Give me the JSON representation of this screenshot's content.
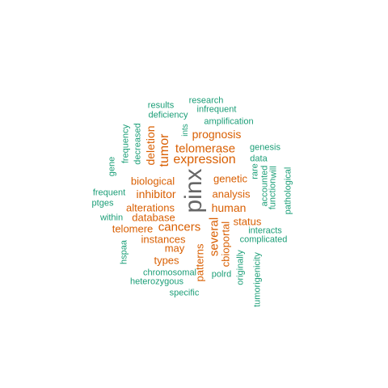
{
  "colors": {
    "small": "#1b9e77",
    "medium": "#d95f02",
    "largest": "#666666"
  },
  "words": [
    "pinx",
    "expression",
    "telomerase",
    "tumor",
    "prognosis",
    "deletion",
    "cancers",
    "inhibitor",
    "human",
    "analysis",
    "genetic",
    "biological",
    "alterations",
    "database",
    "telomere",
    "instances",
    "types",
    "several",
    "cbioportal",
    "patterns",
    "status",
    "may",
    "research",
    "results",
    "infrequent",
    "deficiency",
    "amplification",
    "ints",
    "decreased",
    "frequency",
    "gene",
    "genesis",
    "data",
    "rare",
    "accounted",
    "function",
    "will",
    "pathological",
    "frequent",
    "ptges",
    "within",
    "hspaa",
    "interacts",
    "complicated",
    "chromosomal",
    "heterozygous",
    "specific",
    "polrd",
    "originally",
    "tumorigenicity"
  ]
}
